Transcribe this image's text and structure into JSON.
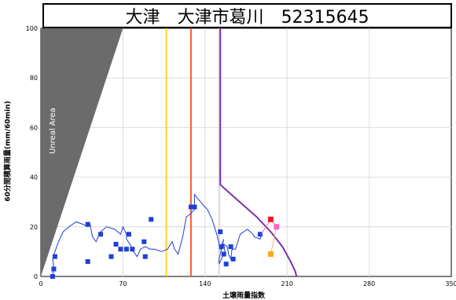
{
  "title": "大津　大津市葛川　52315645",
  "chart_data": {
    "type": "line",
    "ylabel": "60分間積算雨量(mm/60min)",
    "xlabel": "土壌雨量指数",
    "xlim": [
      0,
      350
    ],
    "ylim": [
      0,
      100
    ],
    "xticks": [
      "0",
      "70",
      "140",
      "210",
      "280",
      "350"
    ],
    "yticks": [
      "0",
      "20",
      "40",
      "60",
      "80",
      "100"
    ],
    "grid": true,
    "unreal_area_label": "Unreal Area",
    "unreal_area": [
      [
        0,
        0
      ],
      [
        0,
        100
      ],
      [
        70,
        100
      ]
    ],
    "vertical_lines": [
      {
        "x": 107,
        "color": "#ffd21f"
      },
      {
        "x": 128,
        "color": "#ff5a2a"
      },
      {
        "x": 152,
        "color": "#d6d6d6"
      }
    ],
    "clx_curve": {
      "color": "#7b2fb0",
      "points": [
        [
          153,
          100
        ],
        [
          153,
          37
        ],
        [
          160,
          34
        ],
        [
          172,
          29
        ],
        [
          184,
          24
        ],
        [
          196,
          18
        ],
        [
          206,
          12
        ],
        [
          213,
          6
        ],
        [
          217,
          2
        ],
        [
          218,
          0
        ]
      ]
    },
    "series": [
      {
        "color": "#1f3fd6",
        "points": [
          [
            10,
            0
          ],
          [
            11,
            4
          ],
          [
            10,
            7
          ],
          [
            12,
            10
          ],
          [
            15,
            14
          ],
          [
            19,
            18
          ],
          [
            24,
            20
          ],
          [
            30,
            22
          ],
          [
            36,
            21
          ],
          [
            40,
            20
          ],
          [
            42,
            21
          ],
          [
            44,
            16
          ],
          [
            47,
            14
          ],
          [
            51,
            18
          ],
          [
            56,
            20
          ],
          [
            63,
            19
          ],
          [
            68,
            17
          ],
          [
            70,
            20
          ],
          [
            73,
            17
          ],
          [
            73,
            15
          ],
          [
            76,
            13
          ],
          [
            79,
            10
          ],
          [
            82,
            8
          ],
          [
            85,
            11
          ],
          [
            89,
            12
          ],
          [
            93,
            11
          ],
          [
            97,
            11
          ],
          [
            103,
            10
          ],
          [
            108,
            11
          ],
          [
            112,
            14
          ],
          [
            114,
            11
          ],
          [
            117,
            9
          ],
          [
            121,
            16
          ],
          [
            124,
            24
          ],
          [
            127,
            25
          ],
          [
            131,
            27
          ],
          [
            131,
            33
          ],
          [
            138,
            29
          ],
          [
            142,
            27
          ],
          [
            146,
            23
          ],
          [
            150,
            17
          ],
          [
            153,
            11
          ],
          [
            156,
            15
          ],
          [
            152,
            7
          ],
          [
            152,
            5
          ],
          [
            157,
            10
          ],
          [
            156,
            13
          ],
          [
            159,
            12
          ],
          [
            160,
            9
          ],
          [
            162,
            7
          ],
          [
            163,
            11
          ],
          [
            166,
            11
          ],
          [
            170,
            17
          ],
          [
            176,
            19
          ],
          [
            181,
            17
          ],
          [
            182,
            16
          ],
          [
            187,
            15
          ],
          [
            188,
            17
          ]
        ],
        "markers": [
          [
            10,
            0
          ],
          [
            11,
            3
          ],
          [
            12,
            8
          ],
          [
            40,
            21
          ],
          [
            40,
            6
          ],
          [
            51,
            17
          ],
          [
            75,
            17
          ],
          [
            64,
            13
          ],
          [
            60,
            8
          ],
          [
            68,
            11
          ],
          [
            73,
            11
          ],
          [
            78,
            11
          ],
          [
            88,
            14
          ],
          [
            89,
            8
          ],
          [
            94,
            23
          ],
          [
            128,
            28
          ],
          [
            131,
            28
          ],
          [
            153,
            18
          ],
          [
            154,
            12
          ],
          [
            156,
            9
          ],
          [
            158,
            5
          ],
          [
            162,
            12
          ],
          [
            164,
            7
          ],
          [
            187,
            17
          ]
        ]
      }
    ],
    "extra_points": [
      {
        "x": 196,
        "y": 23,
        "color": "#e8191f"
      },
      {
        "x": 201,
        "y": 20,
        "color": "#ff66c4"
      },
      {
        "x": 196,
        "y": 9,
        "color": "#ffa317"
      }
    ]
  }
}
